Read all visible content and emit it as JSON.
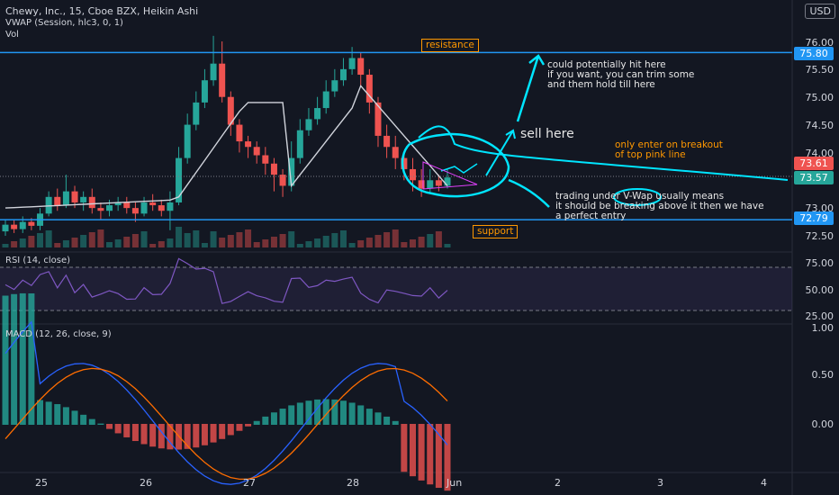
{
  "header": {
    "title": "Chewy, Inc., 15, Cboe BZX, Heikin Ashi",
    "vwap": "VWAP (Session, hlc3, 0, 1)",
    "vol": "Vol",
    "currency": "USD"
  },
  "price_axis": {
    "ticks": [
      "76.00",
      "75.50",
      "75.00",
      "74.50",
      "74.00",
      "73.00",
      "72.50"
    ]
  },
  "tags": {
    "resistance": "75.80",
    "last_a": "73.61",
    "last_b": "73.57",
    "support": "72.79"
  },
  "rsi": {
    "label": "RSI (14, close)",
    "ticks": [
      "75.00",
      "50.00",
      "25.00"
    ]
  },
  "macd": {
    "label": "MACD (12, 26, close, 9)",
    "ticks": [
      "1.00",
      "0.50",
      "0.00"
    ]
  },
  "dates": [
    "25",
    "26",
    "27",
    "28",
    "Jun",
    "2",
    "3",
    "4"
  ],
  "annotations": {
    "resistance": "resistance",
    "support": "support",
    "sell": "sell here",
    "note1": [
      "could potentially hit here",
      "if you want, you can trim some",
      "and them hold till here"
    ],
    "note2": [
      "only enter on breakout",
      "of top pink line"
    ],
    "note3a": "trading under ",
    "note3b": "V-Wap",
    "note3c": " usually means",
    "note3d": "it should be breaking above it then we have",
    "note3e": "a perfect entry"
  },
  "colors": {
    "up": "#26a69a",
    "down": "#ef5350",
    "vwap": "#d1d4dc",
    "level": "#2196f3",
    "draw": "#00e5ff",
    "rsi": "#7e57c2",
    "macd": "#2962ff",
    "signal": "#ff6d00"
  },
  "chart_data": {
    "type": "candlestick",
    "price_range": [
      72.35,
      76.2
    ],
    "resistance": 75.8,
    "support": 72.79,
    "series": [
      {
        "t": 0,
        "o": 72.58,
        "c": 72.7,
        "h": 72.8,
        "l": 72.5
      },
      {
        "t": 1,
        "o": 72.7,
        "c": 72.62,
        "h": 72.78,
        "l": 72.55
      },
      {
        "t": 2,
        "o": 72.62,
        "c": 72.75,
        "h": 72.85,
        "l": 72.55
      },
      {
        "t": 3,
        "o": 72.75,
        "c": 72.68,
        "h": 72.82,
        "l": 72.6
      },
      {
        "t": 4,
        "o": 72.68,
        "c": 72.9,
        "h": 73.0,
        "l": 72.6
      },
      {
        "t": 5,
        "o": 72.9,
        "c": 73.2,
        "h": 73.3,
        "l": 72.85
      },
      {
        "t": 6,
        "o": 73.2,
        "c": 73.05,
        "h": 73.35,
        "l": 72.95
      },
      {
        "t": 7,
        "o": 73.05,
        "c": 73.3,
        "h": 73.6,
        "l": 73.0
      },
      {
        "t": 8,
        "o": 73.3,
        "c": 73.1,
        "h": 73.4,
        "l": 73.0
      },
      {
        "t": 9,
        "o": 73.1,
        "c": 73.2,
        "h": 73.3,
        "l": 72.95
      },
      {
        "t": 10,
        "o": 73.2,
        "c": 73.0,
        "h": 73.35,
        "l": 72.9
      },
      {
        "t": 11,
        "o": 73.0,
        "c": 72.95,
        "h": 73.1,
        "l": 72.8
      },
      {
        "t": 12,
        "o": 72.95,
        "c": 73.05,
        "h": 73.15,
        "l": 72.85
      },
      {
        "t": 13,
        "o": 73.05,
        "c": 73.1,
        "h": 73.2,
        "l": 72.95
      },
      {
        "t": 14,
        "o": 73.1,
        "c": 73.0,
        "h": 73.2,
        "l": 72.9
      },
      {
        "t": 15,
        "o": 73.0,
        "c": 72.9,
        "h": 73.1,
        "l": 72.75
      },
      {
        "t": 16,
        "o": 72.9,
        "c": 73.1,
        "h": 73.2,
        "l": 72.85
      },
      {
        "t": 17,
        "o": 73.1,
        "c": 73.05,
        "h": 73.25,
        "l": 72.95
      },
      {
        "t": 18,
        "o": 73.05,
        "c": 72.95,
        "h": 73.15,
        "l": 72.85
      },
      {
        "t": 19,
        "o": 72.95,
        "c": 73.1,
        "h": 73.3,
        "l": 72.6
      },
      {
        "t": 20,
        "o": 73.1,
        "c": 73.9,
        "h": 74.1,
        "l": 73.05
      },
      {
        "t": 21,
        "o": 73.9,
        "c": 74.5,
        "h": 74.7,
        "l": 73.8
      },
      {
        "t": 22,
        "o": 74.5,
        "c": 74.9,
        "h": 75.1,
        "l": 74.4
      },
      {
        "t": 23,
        "o": 74.9,
        "c": 75.3,
        "h": 75.5,
        "l": 74.8
      },
      {
        "t": 24,
        "o": 75.3,
        "c": 75.6,
        "h": 76.1,
        "l": 75.2
      },
      {
        "t": 25,
        "o": 75.6,
        "c": 75.0,
        "h": 76.0,
        "l": 74.9
      },
      {
        "t": 26,
        "o": 75.0,
        "c": 74.5,
        "h": 75.1,
        "l": 74.3
      },
      {
        "t": 27,
        "o": 74.5,
        "c": 74.2,
        "h": 74.6,
        "l": 74.0
      },
      {
        "t": 28,
        "o": 74.2,
        "c": 74.1,
        "h": 74.3,
        "l": 73.9
      },
      {
        "t": 29,
        "o": 74.1,
        "c": 73.95,
        "h": 74.2,
        "l": 73.8
      },
      {
        "t": 30,
        "o": 73.95,
        "c": 73.8,
        "h": 74.1,
        "l": 73.6
      },
      {
        "t": 31,
        "o": 73.8,
        "c": 73.6,
        "h": 73.9,
        "l": 73.3
      },
      {
        "t": 32,
        "o": 73.6,
        "c": 73.4,
        "h": 73.7,
        "l": 73.2
      },
      {
        "t": 33,
        "o": 73.4,
        "c": 73.9,
        "h": 74.2,
        "l": 73.3
      },
      {
        "t": 34,
        "o": 73.9,
        "c": 74.4,
        "h": 74.6,
        "l": 73.8
      },
      {
        "t": 35,
        "o": 74.4,
        "c": 74.6,
        "h": 74.8,
        "l": 74.3
      },
      {
        "t": 36,
        "o": 74.6,
        "c": 74.8,
        "h": 75.0,
        "l": 74.5
      },
      {
        "t": 37,
        "o": 74.8,
        "c": 75.1,
        "h": 75.3,
        "l": 74.7
      },
      {
        "t": 38,
        "o": 75.1,
        "c": 75.3,
        "h": 75.5,
        "l": 75.0
      },
      {
        "t": 39,
        "o": 75.3,
        "c": 75.5,
        "h": 75.7,
        "l": 75.2
      },
      {
        "t": 40,
        "o": 75.5,
        "c": 75.7,
        "h": 75.9,
        "l": 75.4
      },
      {
        "t": 41,
        "o": 75.7,
        "c": 75.4,
        "h": 75.8,
        "l": 75.2
      },
      {
        "t": 42,
        "o": 75.4,
        "c": 74.9,
        "h": 75.5,
        "l": 74.7
      },
      {
        "t": 43,
        "o": 74.9,
        "c": 74.3,
        "h": 75.0,
        "l": 74.1
      },
      {
        "t": 44,
        "o": 74.3,
        "c": 74.1,
        "h": 74.5,
        "l": 73.9
      },
      {
        "t": 45,
        "o": 74.1,
        "c": 73.9,
        "h": 74.3,
        "l": 73.7
      },
      {
        "t": 46,
        "o": 73.9,
        "c": 73.7,
        "h": 74.0,
        "l": 73.5
      },
      {
        "t": 47,
        "o": 73.7,
        "c": 73.5,
        "h": 73.9,
        "l": 73.3
      },
      {
        "t": 48,
        "o": 73.5,
        "c": 73.35,
        "h": 73.7,
        "l": 73.2
      },
      {
        "t": 49,
        "o": 73.35,
        "c": 73.5,
        "h": 73.7,
        "l": 73.25
      },
      {
        "t": 50,
        "o": 73.5,
        "c": 73.4,
        "h": 73.6,
        "l": 73.3
      },
      {
        "t": 51,
        "o": 73.4,
        "c": 73.55,
        "h": 73.7,
        "l": 73.35
      }
    ]
  }
}
